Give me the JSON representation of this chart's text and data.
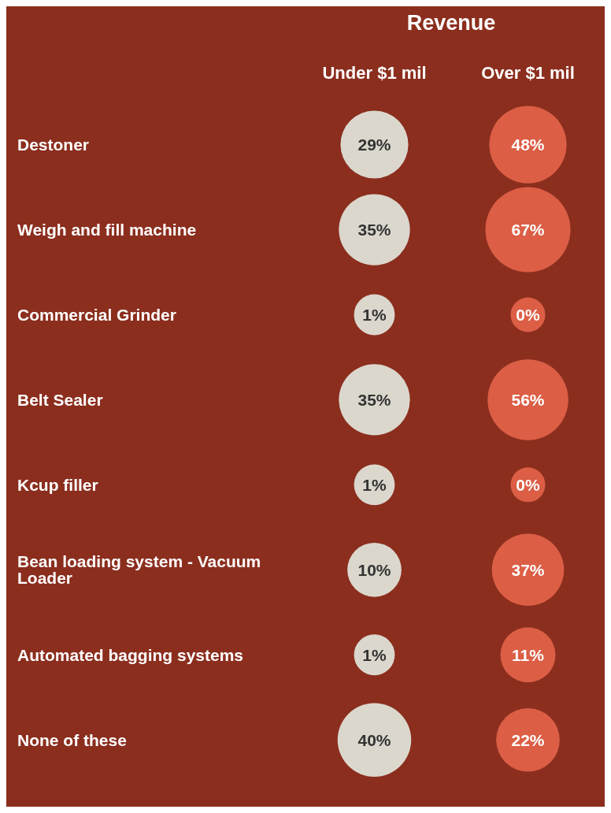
{
  "chart_data": {
    "type": "heatmap",
    "title": "Revenue",
    "categories": [
      "Under $1 mil",
      "Over $1 mil"
    ],
    "colors": [
      "#dbd7cd",
      "#db5e45"
    ],
    "y_categories": [
      "Destoner",
      "Weigh and fill machine",
      "Commercial Grinder",
      "Belt Sealer",
      "Kcup filler",
      "Bean loading system - Vacuum Loader",
      "Automated bagging systems",
      "None of these"
    ],
    "cells": [
      [
        29,
        48
      ],
      [
        35,
        67
      ],
      [
        1,
        0
      ],
      [
        35,
        56
      ],
      [
        1,
        0
      ],
      [
        10,
        37
      ],
      [
        1,
        11
      ],
      [
        40,
        22
      ]
    ],
    "cell_labels": [
      [
        "29%",
        "48%"
      ],
      [
        "35%",
        "67%"
      ],
      [
        "1%",
        "0%"
      ],
      [
        "35%",
        "56%"
      ],
      [
        "1%",
        "0%"
      ],
      [
        "10%",
        "37%"
      ],
      [
        "1%",
        "11%"
      ],
      [
        "40%",
        "22%"
      ]
    ]
  }
}
